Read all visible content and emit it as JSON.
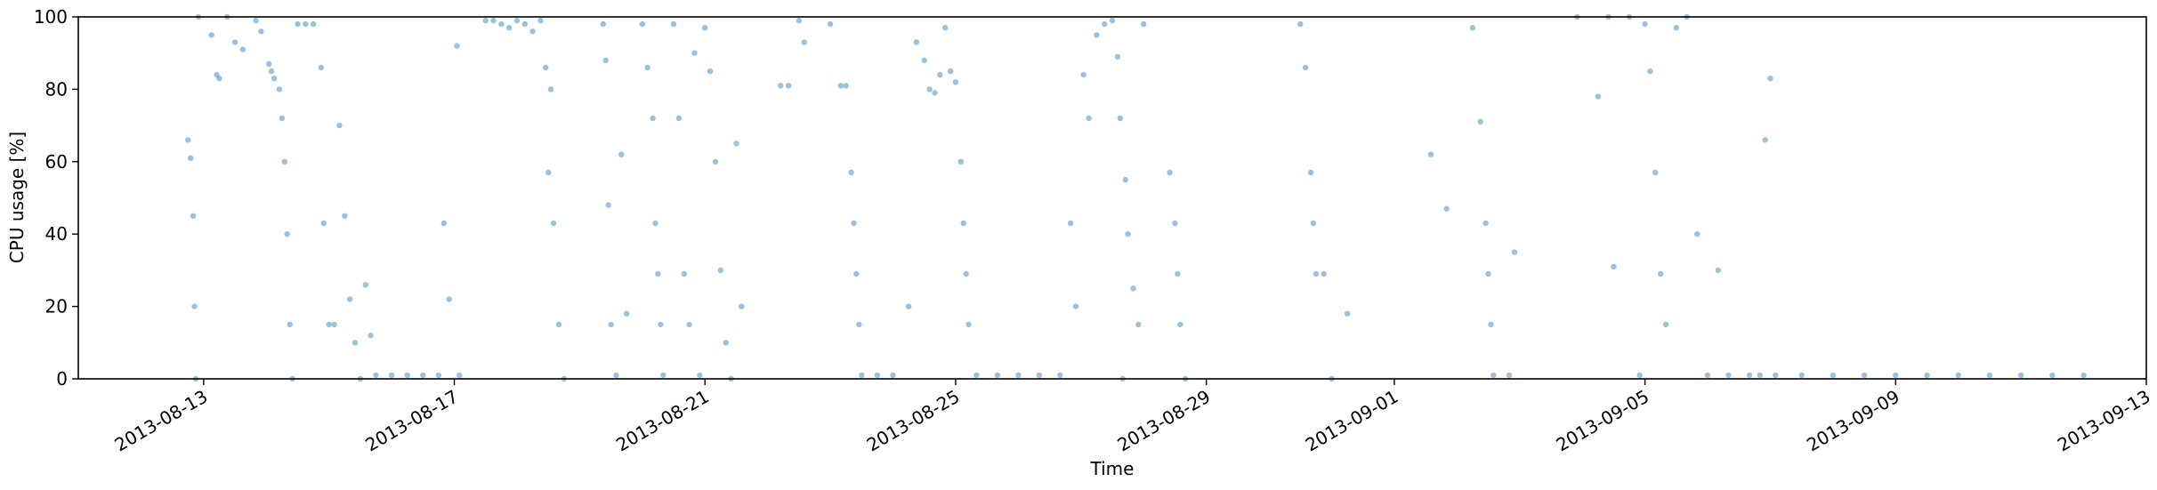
{
  "chart_data": {
    "type": "scatter",
    "title": "",
    "xlabel": "Time",
    "ylabel": "CPU usage [%]",
    "xlim": [
      "2013-08-11",
      "2013-09-13"
    ],
    "ylim": [
      0,
      100
    ],
    "y_ticks": [
      0,
      20,
      40,
      60,
      80,
      100
    ],
    "x_ticks": [
      "2013-08-13",
      "2013-08-17",
      "2013-08-21",
      "2013-08-25",
      "2013-08-29",
      "2013-09-01",
      "2013-09-05",
      "2013-09-09",
      "2013-09-13"
    ],
    "grid": false,
    "marker_color": "#1f77b4",
    "marker_alpha": 0.45,
    "series": [
      {
        "points": [
          [
            "2013-08-12T18:00",
            66
          ],
          [
            "2013-08-12T19:00",
            61
          ],
          [
            "2013-08-12T20:00",
            45
          ],
          [
            "2013-08-12T20:30",
            20
          ],
          [
            "2013-08-12T21:00",
            0
          ],
          [
            "2013-08-12T22:00",
            100
          ],
          [
            "2013-08-13T03:00",
            95
          ],
          [
            "2013-08-13T05:00",
            84
          ],
          [
            "2013-08-13T06:00",
            83
          ],
          [
            "2013-08-13T09:00",
            100
          ],
          [
            "2013-08-13T12:00",
            93
          ],
          [
            "2013-08-13T15:00",
            91
          ],
          [
            "2013-08-13T20:00",
            99
          ],
          [
            "2013-08-13T22:00",
            96
          ],
          [
            "2013-08-14T01:00",
            87
          ],
          [
            "2013-08-14T02:00",
            85
          ],
          [
            "2013-08-14T03:00",
            83
          ],
          [
            "2013-08-14T05:00",
            80
          ],
          [
            "2013-08-14T06:00",
            72
          ],
          [
            "2013-08-14T07:00",
            60
          ],
          [
            "2013-08-14T08:00",
            40
          ],
          [
            "2013-08-14T09:00",
            15
          ],
          [
            "2013-08-14T10:00",
            0
          ],
          [
            "2013-08-14T12:00",
            98
          ],
          [
            "2013-08-14T15:00",
            98
          ],
          [
            "2013-08-14T18:00",
            98
          ],
          [
            "2013-08-14T21:00",
            86
          ],
          [
            "2013-08-14T22:00",
            43
          ],
          [
            "2013-08-15T00:00",
            15
          ],
          [
            "2013-08-15T02:00",
            15
          ],
          [
            "2013-08-15T04:00",
            70
          ],
          [
            "2013-08-15T06:00",
            45
          ],
          [
            "2013-08-15T08:00",
            22
          ],
          [
            "2013-08-15T10:00",
            10
          ],
          [
            "2013-08-15T12:00",
            0
          ],
          [
            "2013-08-15T14:00",
            26
          ],
          [
            "2013-08-15T16:00",
            12
          ],
          [
            "2013-08-15T18:00",
            1
          ],
          [
            "2013-08-16T00:00",
            1
          ],
          [
            "2013-08-16T06:00",
            1
          ],
          [
            "2013-08-16T12:00",
            1
          ],
          [
            "2013-08-16T18:00",
            1
          ],
          [
            "2013-08-16T20:00",
            43
          ],
          [
            "2013-08-16T22:00",
            22
          ],
          [
            "2013-08-17T01:00",
            92
          ],
          [
            "2013-08-17T02:00",
            1
          ],
          [
            "2013-08-17T12:00",
            99
          ],
          [
            "2013-08-17T15:00",
            99
          ],
          [
            "2013-08-17T18:00",
            98
          ],
          [
            "2013-08-17T21:00",
            97
          ],
          [
            "2013-08-18T00:00",
            99
          ],
          [
            "2013-08-18T03:00",
            98
          ],
          [
            "2013-08-18T06:00",
            96
          ],
          [
            "2013-08-18T09:00",
            99
          ],
          [
            "2013-08-18T11:00",
            86
          ],
          [
            "2013-08-18T12:00",
            57
          ],
          [
            "2013-08-18T13:00",
            80
          ],
          [
            "2013-08-18T14:00",
            43
          ],
          [
            "2013-08-18T16:00",
            15
          ],
          [
            "2013-08-18T18:00",
            0
          ],
          [
            "2013-08-19T09:00",
            98
          ],
          [
            "2013-08-19T10:00",
            88
          ],
          [
            "2013-08-19T11:00",
            48
          ],
          [
            "2013-08-19T12:00",
            15
          ],
          [
            "2013-08-19T14:00",
            1
          ],
          [
            "2013-08-19T16:00",
            62
          ],
          [
            "2013-08-19T18:00",
            18
          ],
          [
            "2013-08-20T00:00",
            98
          ],
          [
            "2013-08-20T02:00",
            86
          ],
          [
            "2013-08-20T04:00",
            72
          ],
          [
            "2013-08-20T05:00",
            43
          ],
          [
            "2013-08-20T06:00",
            29
          ],
          [
            "2013-08-20T07:00",
            15
          ],
          [
            "2013-08-20T08:00",
            1
          ],
          [
            "2013-08-20T12:00",
            98
          ],
          [
            "2013-08-20T14:00",
            72
          ],
          [
            "2013-08-20T16:00",
            29
          ],
          [
            "2013-08-20T18:00",
            15
          ],
          [
            "2013-08-20T20:00",
            90
          ],
          [
            "2013-08-20T22:00",
            1
          ],
          [
            "2013-08-21T00:00",
            97
          ],
          [
            "2013-08-21T02:00",
            85
          ],
          [
            "2013-08-21T04:00",
            60
          ],
          [
            "2013-08-21T06:00",
            30
          ],
          [
            "2013-08-21T08:00",
            10
          ],
          [
            "2013-08-21T10:00",
            0
          ],
          [
            "2013-08-21T12:00",
            65
          ],
          [
            "2013-08-21T14:00",
            20
          ],
          [
            "2013-08-22T05:00",
            81
          ],
          [
            "2013-08-22T08:00",
            81
          ],
          [
            "2013-08-22T12:00",
            99
          ],
          [
            "2013-08-22T14:00",
            93
          ],
          [
            "2013-08-23T00:00",
            98
          ],
          [
            "2013-08-23T04:00",
            81
          ],
          [
            "2013-08-23T06:00",
            81
          ],
          [
            "2013-08-23T08:00",
            57
          ],
          [
            "2013-08-23T09:00",
            43
          ],
          [
            "2013-08-23T10:00",
            29
          ],
          [
            "2013-08-23T11:00",
            15
          ],
          [
            "2013-08-23T12:00",
            1
          ],
          [
            "2013-08-23T18:00",
            1
          ],
          [
            "2013-08-24T00:00",
            1
          ],
          [
            "2013-08-24T06:00",
            20
          ],
          [
            "2013-08-24T09:00",
            93
          ],
          [
            "2013-08-24T12:00",
            88
          ],
          [
            "2013-08-24T14:00",
            80
          ],
          [
            "2013-08-24T16:00",
            79
          ],
          [
            "2013-08-24T18:00",
            84
          ],
          [
            "2013-08-24T20:00",
            97
          ],
          [
            "2013-08-24T22:00",
            85
          ],
          [
            "2013-08-25T00:00",
            82
          ],
          [
            "2013-08-25T02:00",
            60
          ],
          [
            "2013-08-25T03:00",
            43
          ],
          [
            "2013-08-25T04:00",
            29
          ],
          [
            "2013-08-25T05:00",
            15
          ],
          [
            "2013-08-25T08:00",
            1
          ],
          [
            "2013-08-25T16:00",
            1
          ],
          [
            "2013-08-26T00:00",
            1
          ],
          [
            "2013-08-26T08:00",
            1
          ],
          [
            "2013-08-26T16:00",
            1
          ],
          [
            "2013-08-26T20:00",
            43
          ],
          [
            "2013-08-26T22:00",
            20
          ],
          [
            "2013-08-27T01:00",
            84
          ],
          [
            "2013-08-27T03:00",
            72
          ],
          [
            "2013-08-27T06:00",
            95
          ],
          [
            "2013-08-27T09:00",
            98
          ],
          [
            "2013-08-27T12:00",
            99
          ],
          [
            "2013-08-27T14:00",
            89
          ],
          [
            "2013-08-27T15:00",
            72
          ],
          [
            "2013-08-27T16:00",
            0
          ],
          [
            "2013-08-27T17:00",
            55
          ],
          [
            "2013-08-27T18:00",
            40
          ],
          [
            "2013-08-27T20:00",
            25
          ],
          [
            "2013-08-27T22:00",
            15
          ],
          [
            "2013-08-28T00:00",
            98
          ],
          [
            "2013-08-28T10:00",
            57
          ],
          [
            "2013-08-28T12:00",
            43
          ],
          [
            "2013-08-28T13:00",
            29
          ],
          [
            "2013-08-28T14:00",
            15
          ],
          [
            "2013-08-28T16:00",
            0
          ],
          [
            "2013-08-30T12:00",
            98
          ],
          [
            "2013-08-30T14:00",
            86
          ],
          [
            "2013-08-30T16:00",
            57
          ],
          [
            "2013-08-30T17:00",
            43
          ],
          [
            "2013-08-30T18:00",
            29
          ],
          [
            "2013-08-30T21:00",
            29
          ],
          [
            "2013-08-31T00:00",
            0
          ],
          [
            "2013-08-31T06:00",
            18
          ],
          [
            "2013-09-01T14:00",
            62
          ],
          [
            "2013-09-01T20:00",
            47
          ],
          [
            "2013-09-02T06:00",
            97
          ],
          [
            "2013-09-02T09:00",
            71
          ],
          [
            "2013-09-02T11:00",
            43
          ],
          [
            "2013-09-02T12:00",
            29
          ],
          [
            "2013-09-02T13:00",
            15
          ],
          [
            "2013-09-02T14:00",
            1
          ],
          [
            "2013-09-02T20:00",
            1
          ],
          [
            "2013-09-02T22:00",
            35
          ],
          [
            "2013-09-03T22:00",
            100
          ],
          [
            "2013-09-04T06:00",
            78
          ],
          [
            "2013-09-04T10:00",
            100
          ],
          [
            "2013-09-04T12:00",
            31
          ],
          [
            "2013-09-04T18:00",
            100
          ],
          [
            "2013-09-04T22:00",
            1
          ],
          [
            "2013-09-05T00:00",
            98
          ],
          [
            "2013-09-05T02:00",
            85
          ],
          [
            "2013-09-05T04:00",
            57
          ],
          [
            "2013-09-05T06:00",
            29
          ],
          [
            "2013-09-05T08:00",
            15
          ],
          [
            "2013-09-05T12:00",
            97
          ],
          [
            "2013-09-05T16:00",
            100
          ],
          [
            "2013-09-05T20:00",
            40
          ],
          [
            "2013-09-06T00:00",
            1
          ],
          [
            "2013-09-06T04:00",
            30
          ],
          [
            "2013-09-06T08:00",
            1
          ],
          [
            "2013-09-06T16:00",
            1
          ],
          [
            "2013-09-06T20:00",
            1
          ],
          [
            "2013-09-06T22:00",
            66
          ],
          [
            "2013-09-07T00:00",
            83
          ],
          [
            "2013-09-07T02:00",
            1
          ],
          [
            "2013-09-07T12:00",
            1
          ],
          [
            "2013-09-08T00:00",
            1
          ],
          [
            "2013-09-08T12:00",
            1
          ],
          [
            "2013-09-09T00:00",
            1
          ],
          [
            "2013-09-09T12:00",
            1
          ],
          [
            "2013-09-10T00:00",
            1
          ],
          [
            "2013-09-10T12:00",
            1
          ],
          [
            "2013-09-11T00:00",
            1
          ],
          [
            "2013-09-11T12:00",
            1
          ],
          [
            "2013-09-12T00:00",
            1
          ]
        ]
      }
    ]
  }
}
